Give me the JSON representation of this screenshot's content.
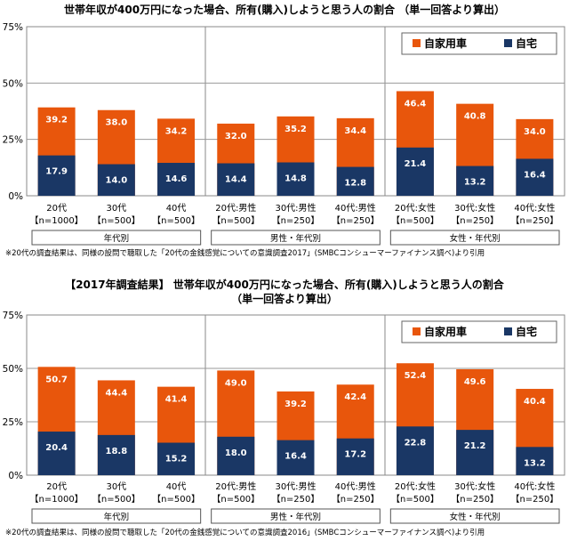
{
  "chart_data": [
    {
      "type": "bar",
      "title": "世帯年収が400万円になった場合、所有(購入)しようと思う人の割合 （単一回答より算出）",
      "yticks": [
        "0%",
        "25%",
        "50%",
        "75%"
      ],
      "ylim": [
        0,
        75
      ],
      "categories": [
        "20代",
        "30代",
        "40代",
        "20代:男性",
        "30代:男性",
        "40代:男性",
        "20代:女性",
        "30代:女性",
        "40代:女性"
      ],
      "sample_sizes": [
        "【n=1000】",
        "【n=500】",
        "【n=500】",
        "【n=500】",
        "【n=250】",
        "【n=250】",
        "【n=500】",
        "【n=250】",
        "【n=250】"
      ],
      "groups": [
        "年代別",
        "男性・年代別",
        "女性・年代別"
      ],
      "series": [
        {
          "name": "自家用車",
          "color": "#e8560c",
          "values": [
            39.2,
            38.0,
            34.2,
            32.0,
            35.2,
            34.4,
            46.4,
            40.8,
            34.0
          ],
          "labels": [
            "39.2",
            "38.0",
            "34.2",
            "32.0",
            "35.2",
            "34.4",
            "46.4",
            "40.8",
            "34.0"
          ]
        },
        {
          "name": "自宅",
          "color": "#1a3765",
          "values": [
            17.9,
            14.0,
            14.6,
            14.4,
            14.8,
            12.8,
            21.4,
            13.2,
            16.4
          ],
          "labels": [
            "17.9",
            "14.0",
            "14.6",
            "14.4",
            "14.8",
            "12.8",
            "21.4",
            "13.2",
            "16.4"
          ]
        }
      ],
      "footnote": "※20代の調査結果は、同様の設問で聴取した「20代の金銭感覚についての意識調査2017」(SMBCコンシューマーファイナンス調べ)より引用"
    },
    {
      "type": "bar",
      "title_line1": "【2017年調査結果】 世帯年収が400万円になった場合、所有(購入)しようと思う人の割合",
      "title_line2": "（単一回答より算出）",
      "yticks": [
        "0%",
        "25%",
        "50%",
        "75%"
      ],
      "ylim": [
        0,
        75
      ],
      "categories": [
        "20代",
        "30代",
        "40代",
        "20代:男性",
        "30代:男性",
        "40代:男性",
        "20代:女性",
        "30代:女性",
        "40代:女性"
      ],
      "sample_sizes": [
        "【n=1000】",
        "【n=500】",
        "【n=500】",
        "【n=500】",
        "【n=250】",
        "【n=250】",
        "【n=500】",
        "【n=250】",
        "【n=250】"
      ],
      "groups": [
        "年代別",
        "男性・年代別",
        "女性・年代別"
      ],
      "series": [
        {
          "name": "自家用車",
          "color": "#e8560c",
          "values": [
            50.7,
            44.4,
            41.4,
            49.0,
            39.2,
            42.4,
            52.4,
            49.6,
            40.4
          ],
          "labels": [
            "50.7",
            "44.4",
            "41.4",
            "49.0",
            "39.2",
            "42.4",
            "52.4",
            "49.6",
            "40.4"
          ]
        },
        {
          "name": "自宅",
          "color": "#1a3765",
          "values": [
            20.4,
            18.8,
            15.2,
            18.0,
            16.4,
            17.2,
            22.8,
            21.2,
            13.2
          ],
          "labels": [
            "20.4",
            "18.8",
            "15.2",
            "18.0",
            "16.4",
            "17.2",
            "22.8",
            "21.2",
            "13.2"
          ]
        }
      ],
      "footnote": "※20代の調査結果は、同様の設問で聴取した「20代の金銭感覚についての意識調査2016」(SMBCコンシューマーファイナンス調べ)より引用"
    }
  ]
}
